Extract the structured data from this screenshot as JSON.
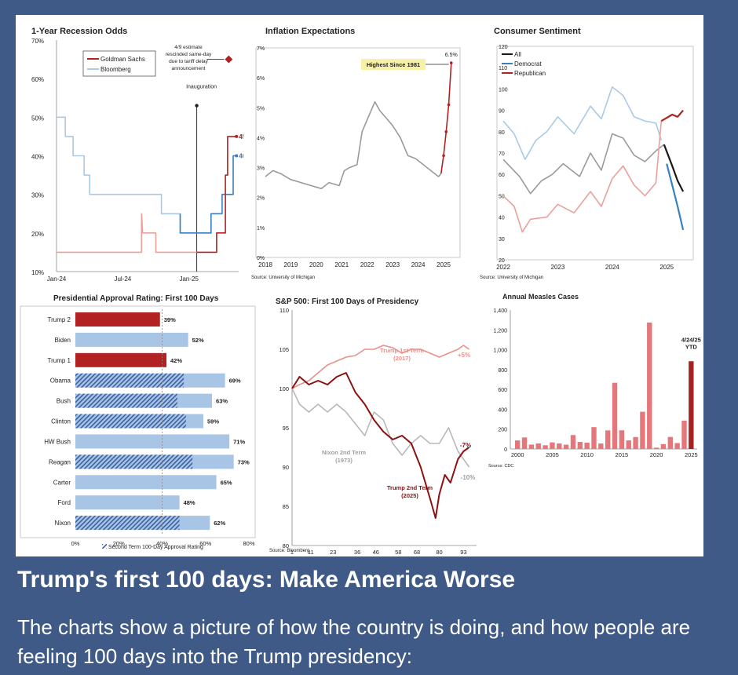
{
  "caption": {
    "headline": "Trump's first 100 days: Make America Worse",
    "body": "The charts show a picture of how the country is doing, and how people are feeling 100 days into the Trump presidency:"
  },
  "colors": {
    "page_bg": "#3f5a87",
    "red": "#b22222",
    "light_red": "#eaa09a",
    "blue": "#3a7fc0",
    "light_blue": "#a9cae6",
    "gray": "#9a9a9a",
    "black": "#1a1a1a"
  },
  "chart_data": [
    {
      "id": "recession",
      "type": "line",
      "title": "1-Year Recession Odds",
      "y_ticks": [
        "70%",
        "60%",
        "50%",
        "40%",
        "30%",
        "20%",
        "10%"
      ],
      "x_ticks": [
        "Jan-24",
        "Jul-24",
        "Jan-25"
      ],
      "ylim": [
        10,
        70
      ],
      "xlim": [
        0,
        16.5
      ],
      "legend": [
        "Goldman Sachs",
        "Bloomberg"
      ],
      "annotations": {
        "estimate": "4/9 estimate rescinded same-day due to tariff delay announcement",
        "inauguration": "Inauguration",
        "gs_end": "45%",
        "bb_end": "40%"
      },
      "estimate_point": {
        "x": 15.6,
        "y": 65
      },
      "inauguration_x": 12.7,
      "series": [
        {
          "name": "Goldman Sachs",
          "points": [
            [
              0,
              15
            ],
            [
              7.7,
              15
            ],
            [
              7.7,
              25
            ],
            [
              7.8,
              20
            ],
            [
              9,
              20
            ],
            [
              9,
              15
            ],
            [
              12.7,
              15
            ],
            [
              12.7,
              15
            ],
            [
              14.5,
              15
            ],
            [
              14.5,
              20
            ],
            [
              15.3,
              20
            ],
            [
              15.3,
              35
            ],
            [
              15.5,
              35
            ],
            [
              15.5,
              45
            ],
            [
              16.3,
              45
            ]
          ]
        },
        {
          "name": "Bloomberg",
          "points": [
            [
              0,
              50
            ],
            [
              0.8,
              50
            ],
            [
              0.8,
              45
            ],
            [
              1.5,
              45
            ],
            [
              1.5,
              40
            ],
            [
              2.5,
              40
            ],
            [
              2.5,
              35
            ],
            [
              3,
              35
            ],
            [
              3,
              30
            ],
            [
              9.5,
              30
            ],
            [
              9.5,
              25
            ],
            [
              11.2,
              25
            ],
            [
              11.2,
              20
            ],
            [
              14,
              20
            ],
            [
              14,
              25
            ],
            [
              15,
              25
            ],
            [
              15,
              30
            ],
            [
              16,
              30
            ],
            [
              16,
              40
            ],
            [
              16.3,
              40
            ]
          ]
        }
      ]
    },
    {
      "id": "inflation",
      "type": "line",
      "title": "Inflation Expectations",
      "y_ticks": [
        "7%",
        "6%",
        "5%",
        "4%",
        "3%",
        "2%",
        "1%",
        "0%"
      ],
      "x_ticks": [
        "2018",
        "2019",
        "2020",
        "2021",
        "2022",
        "2023",
        "2024",
        "2025"
      ],
      "ylim": [
        0,
        7
      ],
      "xlim": [
        2018,
        2025.4
      ],
      "source": "Source: University of Michigan",
      "annotations": {
        "highest": "Highest Since 1981",
        "end": "6.5%"
      },
      "series": [
        {
          "name": "",
          "points": [
            [
              2018,
              2.7
            ],
            [
              2018.3,
              2.9
            ],
            [
              2018.6,
              2.8
            ],
            [
              2019,
              2.6
            ],
            [
              2019.4,
              2.5
            ],
            [
              2019.8,
              2.4
            ],
            [
              2020.2,
              2.3
            ],
            [
              2020.5,
              2.5
            ],
            [
              2020.9,
              2.4
            ],
            [
              2021.1,
              2.9
            ],
            [
              2021.3,
              3
            ],
            [
              2021.6,
              3.1
            ],
            [
              2021.8,
              4.2
            ],
            [
              2022,
              4.6
            ],
            [
              2022.3,
              5.2
            ],
            [
              2022.5,
              4.9
            ],
            [
              2022.8,
              4.6
            ],
            [
              2023,
              4.4
            ],
            [
              2023.3,
              4
            ],
            [
              2023.6,
              3.4
            ],
            [
              2023.9,
              3.3
            ],
            [
              2024.2,
              3.1
            ],
            [
              2024.5,
              2.9
            ],
            [
              2024.8,
              2.7
            ],
            [
              2024.9,
              2.8
            ],
            [
              2025,
              3.4
            ],
            [
              2025.1,
              4.2
            ],
            [
              2025.2,
              5.1
            ],
            [
              2025.3,
              6.5
            ]
          ]
        }
      ]
    },
    {
      "id": "sentiment",
      "type": "line",
      "title": "Consumer Sentiment",
      "y_ticks": [
        "120",
        "110",
        "100",
        "90",
        "80",
        "70",
        "60",
        "50",
        "40",
        "30",
        "20"
      ],
      "x_ticks": [
        "2022",
        "2023",
        "2024",
        "2025"
      ],
      "ylim": [
        20,
        120
      ],
      "xlim": [
        2022,
        2025.4
      ],
      "source": "Source: University of Michigan",
      "legend": [
        "All",
        "Democrat",
        "Republican"
      ],
      "series": [
        {
          "name": "All",
          "points": [
            [
              2022,
              67
            ],
            [
              2022.3,
              59
            ],
            [
              2022.5,
              51
            ],
            [
              2022.7,
              57
            ],
            [
              2022.9,
              60
            ],
            [
              2023.1,
              65
            ],
            [
              2023.4,
              59
            ],
            [
              2023.6,
              70
            ],
            [
              2023.8,
              62
            ],
            [
              2024,
              79
            ],
            [
              2024.2,
              77
            ],
            [
              2024.4,
              69
            ],
            [
              2024.6,
              66
            ],
            [
              2024.8,
              71
            ],
            [
              2024.95,
              74
            ],
            [
              2025.1,
              64
            ],
            [
              2025.2,
              57
            ],
            [
              2025.3,
              52
            ]
          ]
        },
        {
          "name": "Democrat",
          "points": [
            [
              2022,
              85
            ],
            [
              2022.2,
              79
            ],
            [
              2022.4,
              67
            ],
            [
              2022.6,
              76
            ],
            [
              2022.8,
              80
            ],
            [
              2023,
              87
            ],
            [
              2023.3,
              79
            ],
            [
              2023.6,
              92
            ],
            [
              2023.8,
              86
            ],
            [
              2024,
              101
            ],
            [
              2024.2,
              97
            ],
            [
              2024.4,
              87
            ],
            [
              2024.6,
              85
            ],
            [
              2024.8,
              84
            ],
            [
              2024.9,
              76
            ],
            [
              2025,
              65
            ],
            [
              2025.1,
              55
            ],
            [
              2025.2,
              45
            ],
            [
              2025.3,
              34
            ]
          ]
        },
        {
          "name": "Republican",
          "points": [
            [
              2022,
              50
            ],
            [
              2022.2,
              45
            ],
            [
              2022.35,
              33
            ],
            [
              2022.5,
              39
            ],
            [
              2022.8,
              40
            ],
            [
              2023,
              46
            ],
            [
              2023.3,
              42
            ],
            [
              2023.6,
              52
            ],
            [
              2023.8,
              45
            ],
            [
              2024,
              58
            ],
            [
              2024.2,
              64
            ],
            [
              2024.4,
              55
            ],
            [
              2024.6,
              50
            ],
            [
              2024.8,
              56
            ],
            [
              2024.9,
              85
            ],
            [
              2025.1,
              88
            ],
            [
              2025.2,
              87
            ],
            [
              2025.3,
              90
            ]
          ]
        }
      ]
    },
    {
      "id": "approval",
      "type": "bar",
      "orientation": "horizontal",
      "title": "Presidential Approval Rating: First 100 Days",
      "x_ticks": [
        "0%",
        "20%",
        "40%",
        "60%",
        "80%"
      ],
      "xlim": [
        0,
        80
      ],
      "reference_x": 40,
      "legend_note": "Second Term 100-Day Approval Rating",
      "categories": [
        "Trump 2",
        "Biden",
        "Trump 1",
        "Obama",
        "Bush",
        "Clinton",
        "HW Bush",
        "Reagan",
        "Carter",
        "Ford",
        "Nixon"
      ],
      "values": [
        39,
        52,
        42,
        69,
        63,
        59,
        71,
        73,
        65,
        48,
        62
      ],
      "labels": [
        "39%",
        "52%",
        "42%",
        "69%",
        "63%",
        "59%",
        "71%",
        "73%",
        "65%",
        "48%",
        "62%"
      ],
      "second_term": [
        null,
        null,
        null,
        50,
        47,
        51,
        null,
        54,
        null,
        null,
        48
      ],
      "highlight": [
        true,
        false,
        true,
        false,
        false,
        false,
        false,
        false,
        false,
        false,
        false
      ]
    },
    {
      "id": "sp500",
      "type": "line",
      "title": "S&P 500: First 100 Days of Presidency",
      "y_ticks": [
        "110",
        "105",
        "100",
        "95",
        "90",
        "85",
        "80"
      ],
      "x_ticks": [
        "1",
        "11",
        "23",
        "36",
        "46",
        "58",
        "68",
        "80",
        "93"
      ],
      "ylim": [
        80,
        110
      ],
      "source": "Source: Bloomberg",
      "annotations": {
        "trump1": "Trump 1st Term",
        "trump1_year": "(2017)",
        "trump1_end": "+5%",
        "nixon": "Nixon 2nd Term",
        "nixon_year": "(1973)",
        "nixon_end": "-10%",
        "trump2": "Trump 2nd Term",
        "trump2_year": "(2025)",
        "trump2_end": "-7%"
      },
      "series": [
        {
          "name": "Trump 1st Term",
          "points": [
            [
              1,
              100
            ],
            [
              5,
              100.5
            ],
            [
              10,
              101
            ],
            [
              15,
              102
            ],
            [
              20,
              103
            ],
            [
              25,
              103.5
            ],
            [
              30,
              104
            ],
            [
              35,
              104.2
            ],
            [
              40,
              105
            ],
            [
              45,
              105
            ],
            [
              50,
              105.5
            ],
            [
              55,
              105.2
            ],
            [
              60,
              104.5
            ],
            [
              65,
              105
            ],
            [
              70,
              105
            ],
            [
              75,
              104.5
            ],
            [
              80,
              104
            ],
            [
              85,
              104.5
            ],
            [
              90,
              105
            ],
            [
              93,
              105.5
            ],
            [
              96,
              105
            ]
          ]
        },
        {
          "name": "Nixon 2nd Term",
          "points": [
            [
              1,
              100
            ],
            [
              5,
              98
            ],
            [
              10,
              97
            ],
            [
              15,
              98
            ],
            [
              20,
              97
            ],
            [
              25,
              98
            ],
            [
              30,
              97
            ],
            [
              35,
              95.5
            ],
            [
              40,
              94
            ],
            [
              45,
              97
            ],
            [
              50,
              96
            ],
            [
              55,
              93
            ],
            [
              60,
              91.5
            ],
            [
              65,
              93
            ],
            [
              70,
              94
            ],
            [
              75,
              93
            ],
            [
              80,
              93
            ],
            [
              85,
              95
            ],
            [
              90,
              92
            ],
            [
              93,
              91
            ],
            [
              96,
              90
            ]
          ]
        },
        {
          "name": "Trump 2nd Term",
          "points": [
            [
              1,
              100
            ],
            [
              5,
              101.5
            ],
            [
              10,
              100.5
            ],
            [
              15,
              101
            ],
            [
              20,
              100.5
            ],
            [
              25,
              101.5
            ],
            [
              30,
              102
            ],
            [
              35,
              99.5
            ],
            [
              40,
              98
            ],
            [
              45,
              96
            ],
            [
              50,
              94.5
            ],
            [
              55,
              93.5
            ],
            [
              60,
              94
            ],
            [
              65,
              93
            ],
            [
              70,
              90
            ],
            [
              75,
              86
            ],
            [
              78,
              83.5
            ],
            [
              80,
              86.5
            ],
            [
              83,
              89
            ],
            [
              86,
              88
            ],
            [
              90,
              91
            ],
            [
              93,
              92
            ],
            [
              96,
              92.5
            ]
          ]
        }
      ]
    },
    {
      "id": "measles",
      "type": "bar",
      "title": "Annual Measles Cases",
      "y_ticks": [
        "1,400",
        "1,200",
        "1,000",
        "800",
        "600",
        "400",
        "200",
        "0"
      ],
      "x_ticks": [
        "2000",
        "2005",
        "2010",
        "2015",
        "2020",
        "2025"
      ],
      "ylim": [
        0,
        1400
      ],
      "source": "Source: CDC",
      "annotation": "4/24/25 YTD",
      "years": [
        2000,
        2001,
        2002,
        2003,
        2004,
        2005,
        2006,
        2007,
        2008,
        2009,
        2010,
        2011,
        2012,
        2013,
        2014,
        2015,
        2016,
        2017,
        2018,
        2019,
        2020,
        2021,
        2022,
        2023,
        2024,
        2025
      ],
      "values": [
        86,
        116,
        44,
        56,
        37,
        66,
        55,
        43,
        140,
        71,
        63,
        220,
        55,
        187,
        667,
        188,
        86,
        120,
        375,
        1274,
        13,
        49,
        121,
        59,
        285,
        884
      ]
    }
  ]
}
